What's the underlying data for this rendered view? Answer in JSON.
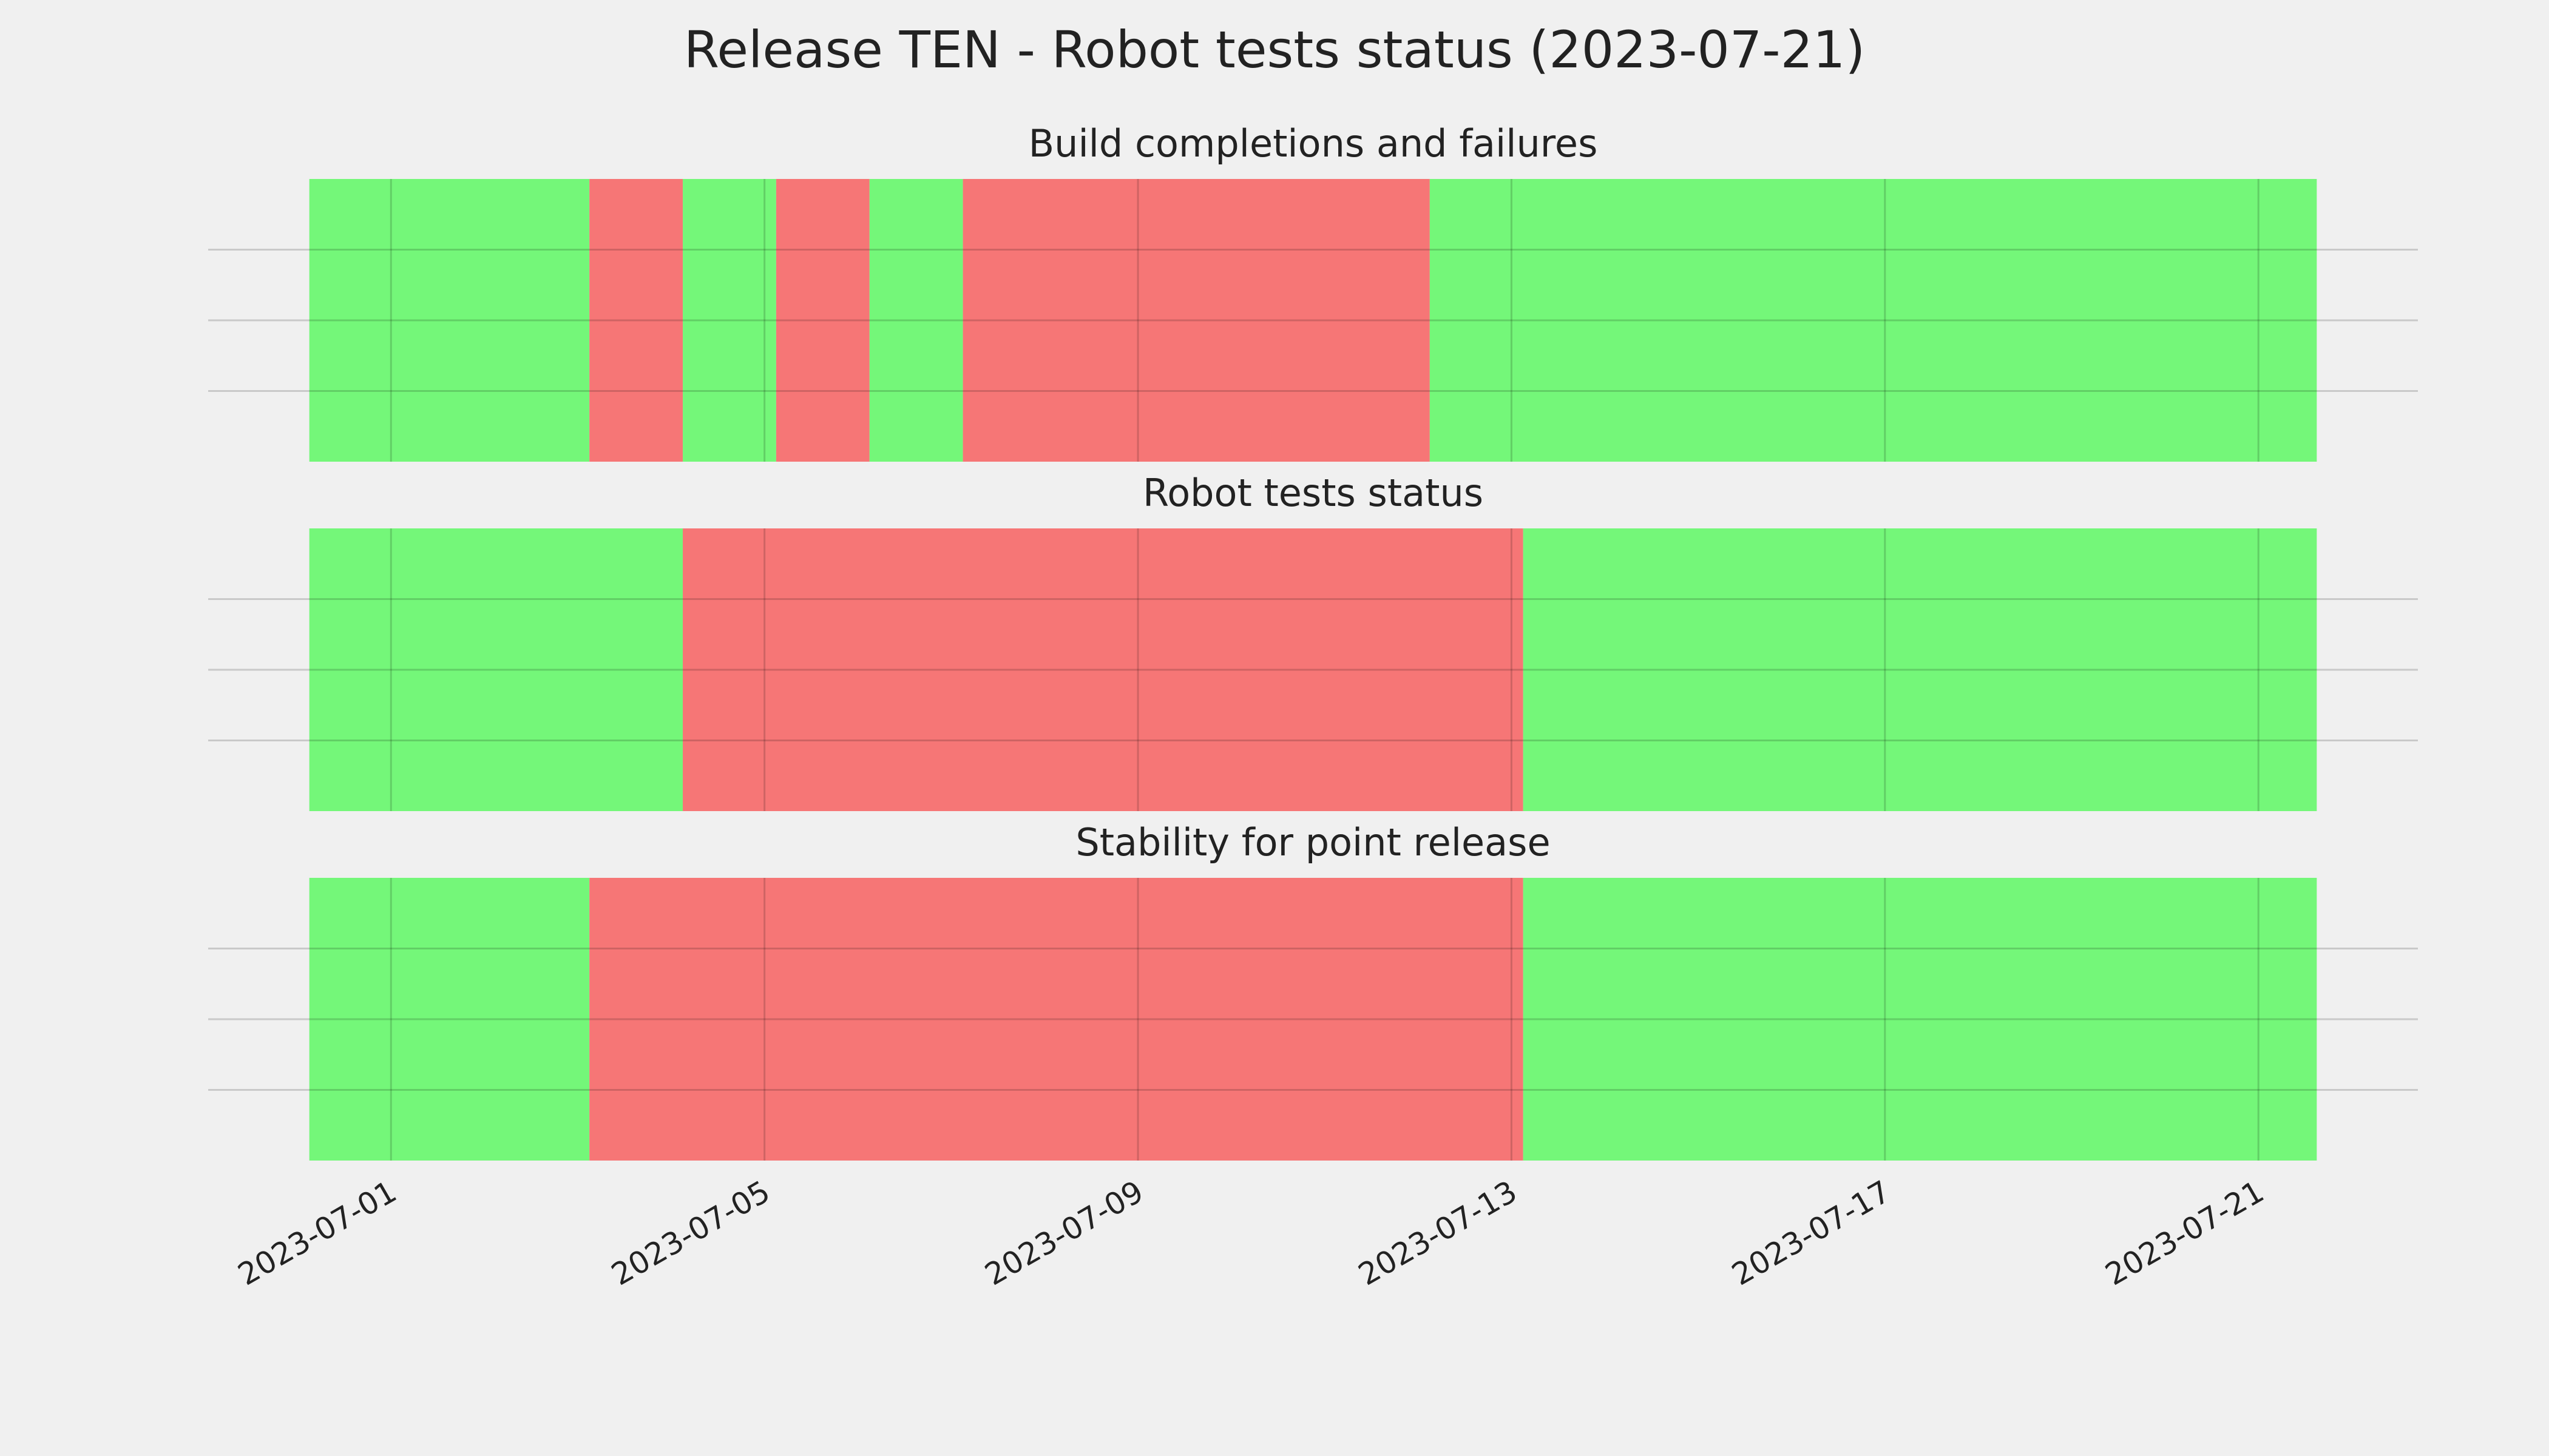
{
  "title": "Release TEN - Robot tests status (2023-07-21)",
  "chart_data": [
    {
      "type": "span",
      "title": "Build completions and failures",
      "segments": [
        {
          "start": "2023-06-30T03:00",
          "end": "2023-07-03T03:00",
          "color": "#74f779"
        },
        {
          "start": "2023-07-03T03:00",
          "end": "2023-07-04T03:00",
          "color": "#f67676"
        },
        {
          "start": "2023-07-04T03:00",
          "end": "2023-07-05T03:00",
          "color": "#74f779"
        },
        {
          "start": "2023-07-05T03:00",
          "end": "2023-07-06T03:00",
          "color": "#f67676"
        },
        {
          "start": "2023-07-06T03:00",
          "end": "2023-07-07T03:00",
          "color": "#74f779"
        },
        {
          "start": "2023-07-07T03:00",
          "end": "2023-07-12T03:00",
          "color": "#f67676"
        },
        {
          "start": "2023-07-12T03:00",
          "end": "2023-07-21T15:00",
          "color": "#74f779"
        }
      ],
      "xlim": [
        "2023-06-29T01:00",
        "2023-07-22T17:00"
      ],
      "xticks": [
        "2023-07-01",
        "2023-07-05",
        "2023-07-09",
        "2023-07-13",
        "2023-07-17",
        "2023-07-21"
      ],
      "ylim": [
        0,
        1
      ],
      "yticks": [
        0.25,
        0.5,
        0.75
      ],
      "grid": true
    },
    {
      "type": "span",
      "title": "Robot tests status",
      "segments": [
        {
          "start": "2023-06-30T03:00",
          "end": "2023-07-04T03:00",
          "color": "#74f779"
        },
        {
          "start": "2023-07-04T03:00",
          "end": "2023-07-13T03:00",
          "color": "#f67676"
        },
        {
          "start": "2023-07-13T03:00",
          "end": "2023-07-21T15:00",
          "color": "#74f779"
        }
      ],
      "xlim": [
        "2023-06-29T01:00",
        "2023-07-22T17:00"
      ],
      "xticks": [
        "2023-07-01",
        "2023-07-05",
        "2023-07-09",
        "2023-07-13",
        "2023-07-17",
        "2023-07-21"
      ],
      "ylim": [
        0,
        1
      ],
      "yticks": [
        0.25,
        0.5,
        0.75
      ],
      "grid": true
    },
    {
      "type": "span",
      "title": "Stability for point release",
      "segments": [
        {
          "start": "2023-06-30T03:00",
          "end": "2023-07-03T03:00",
          "color": "#74f779"
        },
        {
          "start": "2023-07-03T03:00",
          "end": "2023-07-13T03:00",
          "color": "#f67676"
        },
        {
          "start": "2023-07-13T03:00",
          "end": "2023-07-21T15:00",
          "color": "#74f779"
        }
      ],
      "xlim": [
        "2023-06-29T01:00",
        "2023-07-22T17:00"
      ],
      "xticks": [
        "2023-07-01",
        "2023-07-05",
        "2023-07-09",
        "2023-07-13",
        "2023-07-17",
        "2023-07-21"
      ],
      "ylim": [
        0,
        1
      ],
      "yticks": [
        0.25,
        0.5,
        0.75
      ],
      "grid": true
    }
  ]
}
